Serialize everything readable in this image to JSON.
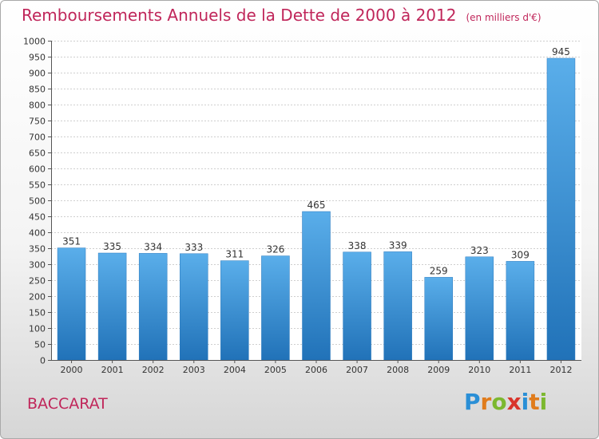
{
  "chart_data": {
    "type": "bar",
    "title": "Remboursements Annuels de la Dette de 2000 à 2012",
    "subtitle": "(en milliers d'€)",
    "categories": [
      "2000",
      "2001",
      "2002",
      "2003",
      "2004",
      "2005",
      "2006",
      "2007",
      "2008",
      "2009",
      "2010",
      "2011",
      "2012"
    ],
    "values": [
      351,
      335,
      334,
      333,
      311,
      326,
      465,
      338,
      339,
      259,
      323,
      309,
      945
    ],
    "ylim": [
      0,
      1000
    ],
    "yticks": [
      0,
      50,
      100,
      150,
      200,
      250,
      300,
      350,
      400,
      450,
      500,
      550,
      600,
      650,
      700,
      750,
      800,
      850,
      900,
      950,
      1000
    ],
    "grid": true,
    "bar_color": "#3d8fd6",
    "title_color": "#c0265a"
  },
  "footer": {
    "town": "BACCARAT",
    "logo_letters": [
      "P",
      "r",
      "o",
      "x",
      "i",
      "t",
      "i"
    ],
    "logo_colors": [
      "#2a8fd6",
      "#e07c1c",
      "#7cb82f",
      "#d9342b",
      "#2a8fd6",
      "#e07c1c",
      "#7cb82f"
    ]
  }
}
